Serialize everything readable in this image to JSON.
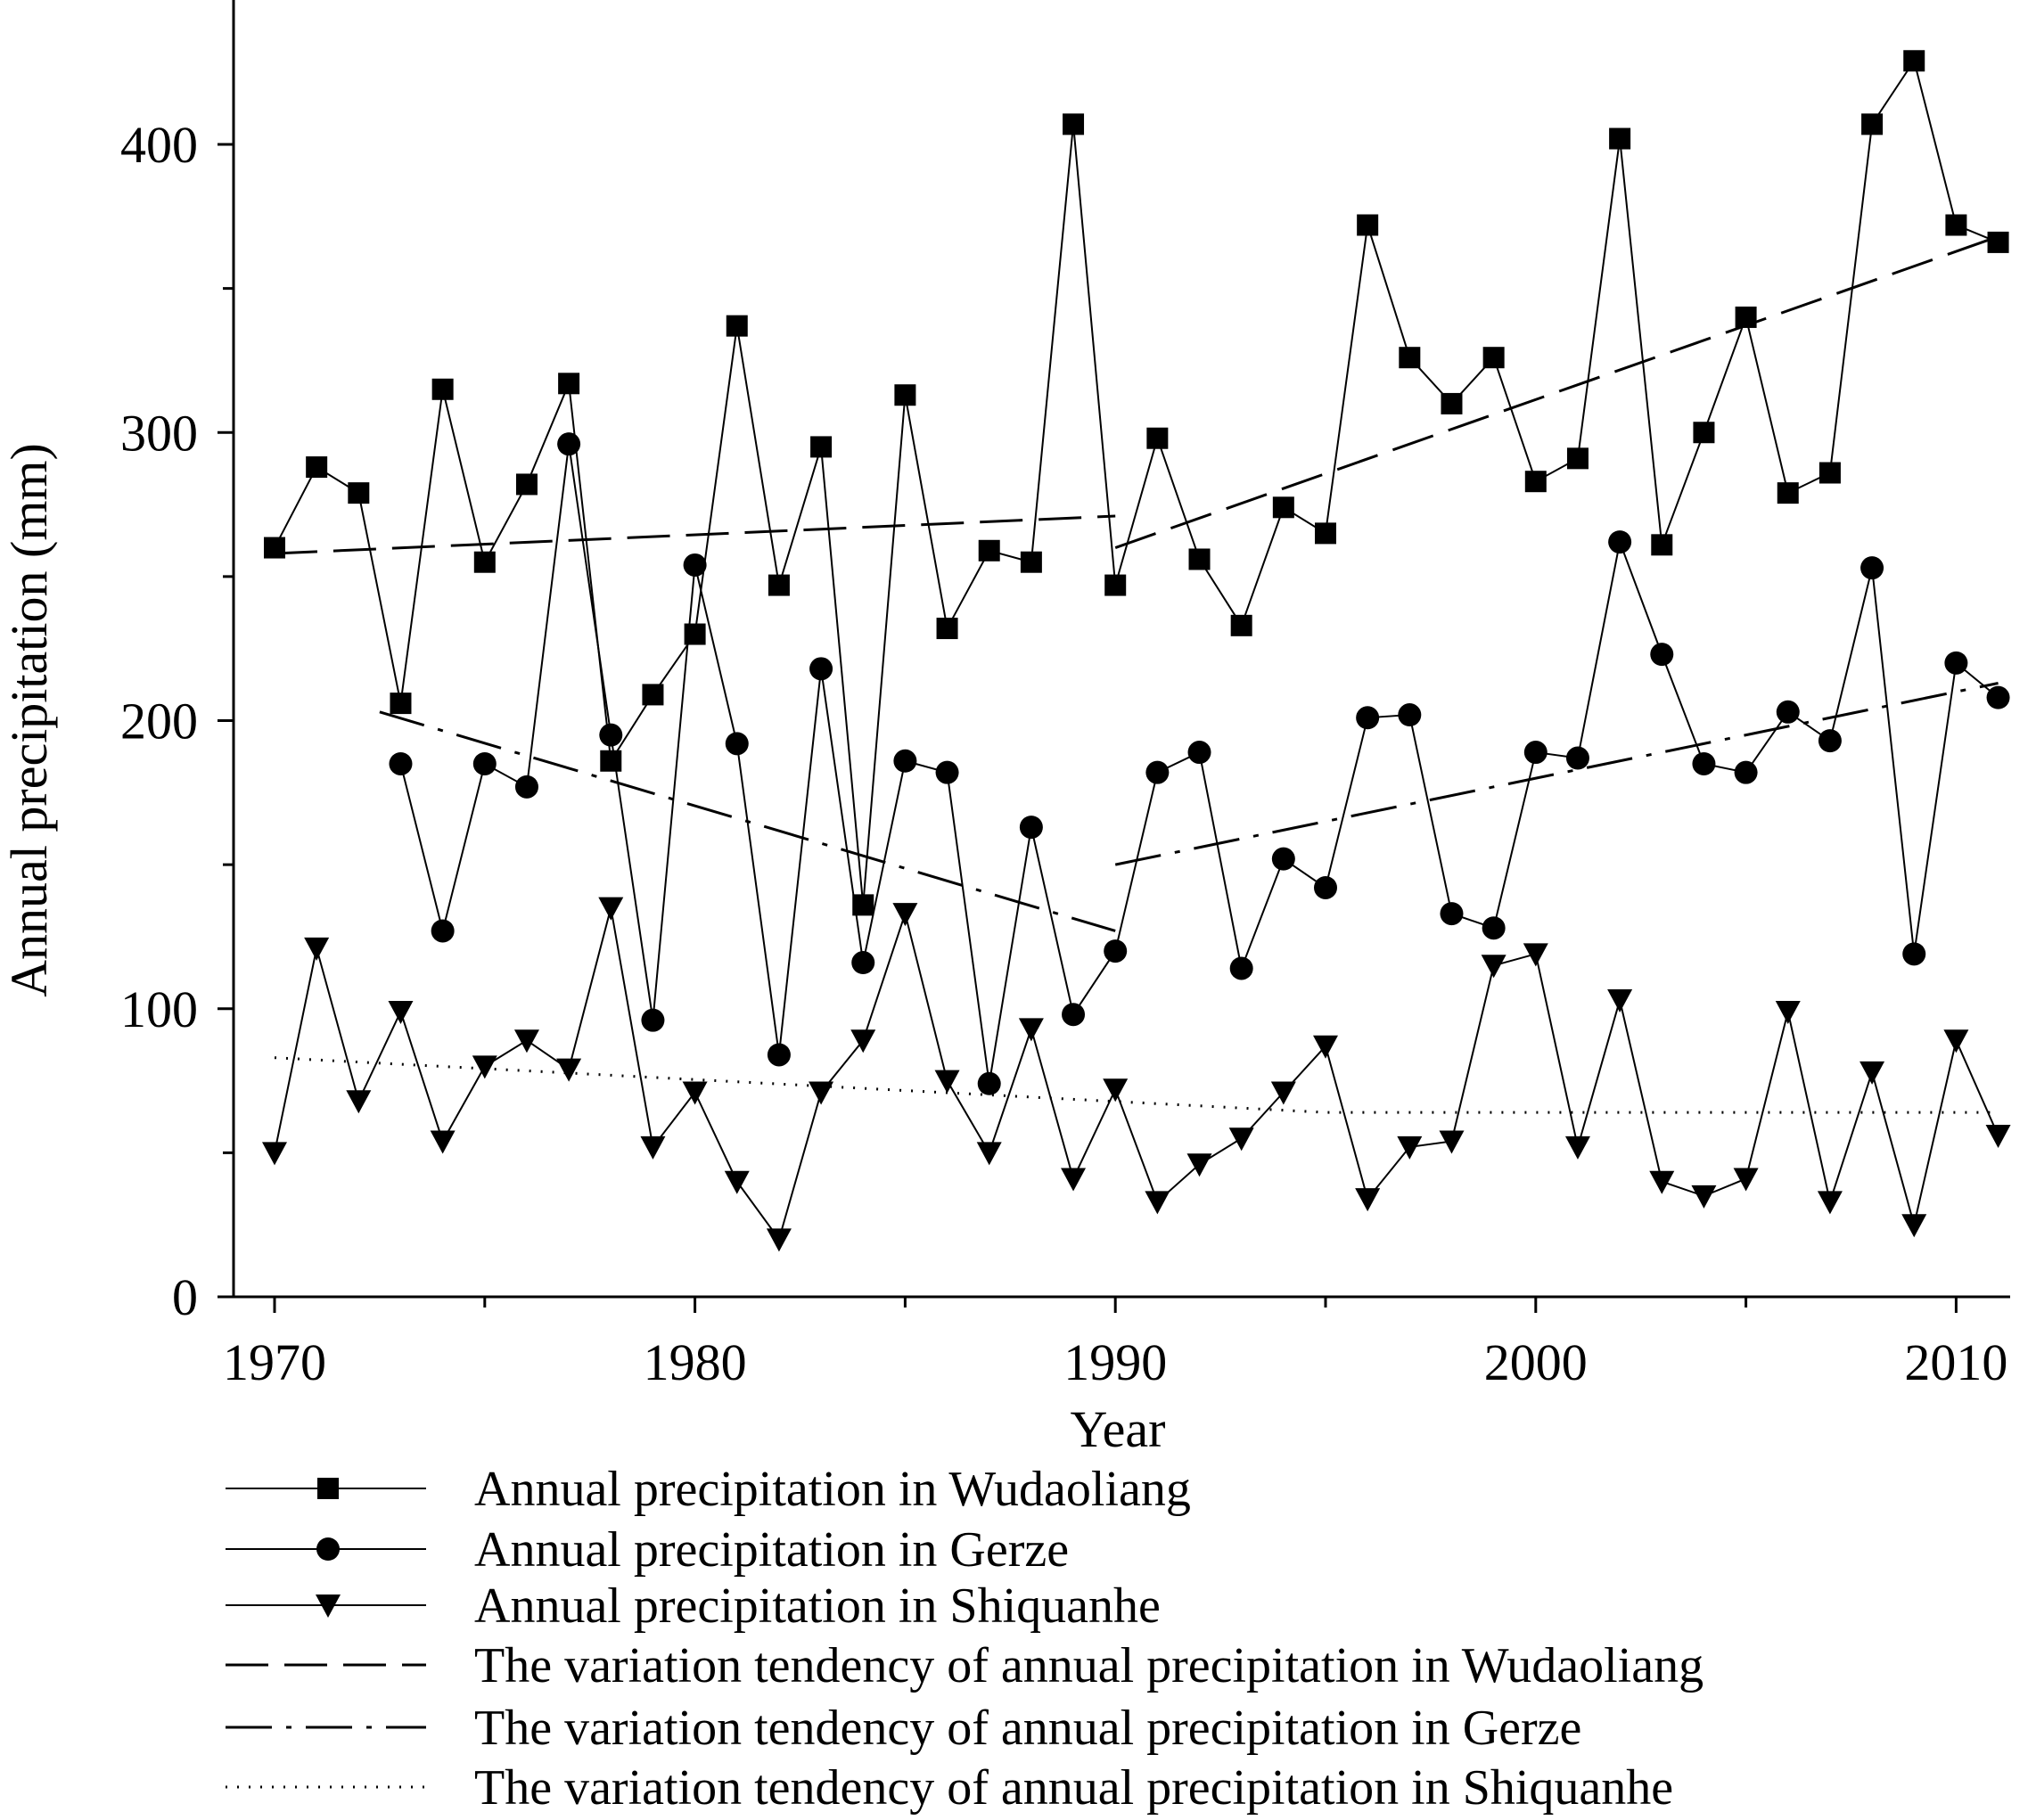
{
  "chart_data": {
    "type": "line",
    "xlabel": "Year",
    "ylabel": "Annual precipitation (mm)",
    "xlim": [
      1969,
      2012
    ],
    "ylim": [
      0,
      450
    ],
    "xticks": [
      1970,
      1980,
      1990,
      2000,
      2010
    ],
    "yticks": [
      0,
      100,
      200,
      300,
      400
    ],
    "grid": false,
    "legend_position": "bottom",
    "x": [
      1970,
      1971,
      1972,
      1973,
      1974,
      1975,
      1976,
      1977,
      1978,
      1979,
      1980,
      1981,
      1982,
      1983,
      1984,
      1985,
      1986,
      1987,
      1988,
      1989,
      1990,
      1991,
      1992,
      1993,
      1994,
      1995,
      1996,
      1997,
      1998,
      1999,
      2000,
      2001,
      2002,
      2003,
      2004,
      2005,
      2006,
      2007,
      2008,
      2009,
      2010,
      2011
    ],
    "series": [
      {
        "name": "Annual precipitation in Wudaoliang",
        "marker": "square",
        "x": [
          1970,
          1971,
          1972,
          1973,
          1974,
          1975,
          1976,
          1977,
          1978,
          1979,
          1980,
          1981,
          1982,
          1983,
          1984,
          1985,
          1986,
          1987,
          1988,
          1989,
          1990,
          1991,
          1992,
          1993,
          1994,
          1995,
          1996,
          1997,
          1998,
          1999,
          2000,
          2001,
          2002,
          2003,
          2004,
          2005,
          2006,
          2007,
          2008,
          2009,
          2010,
          2011
        ],
        "values": [
          260,
          288,
          279,
          206,
          315,
          255,
          282,
          317,
          186,
          209,
          230,
          337,
          247,
          295,
          136,
          313,
          232,
          259,
          255,
          407,
          247,
          298,
          256,
          233,
          274,
          265,
          372,
          326,
          310,
          326,
          283,
          291,
          402,
          261,
          300,
          340,
          279,
          286,
          407,
          429,
          372,
          366
        ]
      },
      {
        "name": "Annual precipitation in Gerze",
        "marker": "circle",
        "x": [
          1973,
          1974,
          1975,
          1976,
          1977,
          1978,
          1979,
          1980,
          1981,
          1982,
          1983,
          1984,
          1985,
          1986,
          1987,
          1988,
          1989,
          1990,
          1991,
          1992,
          1993,
          1994,
          1995,
          1996,
          1997,
          1998,
          1999,
          2000,
          2001,
          2002,
          2003,
          2004,
          2005,
          2006,
          2007,
          2008,
          2009,
          2010,
          2011
        ],
        "values": [
          185,
          127,
          185,
          177,
          296,
          195,
          96,
          254,
          192,
          84,
          218,
          116,
          186,
          182,
          74,
          163,
          98,
          120,
          182,
          189,
          114,
          152,
          142,
          201,
          202,
          133,
          128,
          189,
          187,
          262,
          223,
          185,
          182,
          203,
          193,
          253,
          119,
          220,
          208
        ]
      },
      {
        "name": "Annual precipitation in Shiquanhe",
        "marker": "triangle-down",
        "x": [
          1970,
          1971,
          1972,
          1973,
          1974,
          1975,
          1976,
          1977,
          1978,
          1979,
          1980,
          1981,
          1982,
          1983,
          1984,
          1985,
          1986,
          1987,
          1988,
          1989,
          1990,
          1991,
          1992,
          1993,
          1994,
          1995,
          1996,
          1997,
          1998,
          1999,
          2000,
          2001,
          2002,
          2003,
          2004,
          2005,
          2006,
          2007,
          2008,
          2009,
          2010,
          2011
        ],
        "values": [
          50,
          121,
          68,
          99,
          54,
          80,
          89,
          79,
          135,
          52,
          71,
          40,
          20,
          71,
          89,
          133,
          75,
          50,
          93,
          41,
          72,
          33,
          46,
          55,
          71,
          87,
          34,
          52,
          54,
          115,
          119,
          52,
          103,
          40,
          35,
          41,
          99,
          33,
          78,
          25,
          89,
          56
        ]
      }
    ],
    "trends": [
      {
        "name": "The variation tendency of annual precipitation in Wudaoliang",
        "style": "dash",
        "segments": [
          {
            "x": [
              1970,
              1990
            ],
            "y": [
              258,
              271
            ]
          },
          {
            "x": [
              1990,
              2011
            ],
            "y": [
              260,
              368
            ]
          }
        ]
      },
      {
        "name": "The variation tendency of annual precipitation in Gerze",
        "style": "dashdot",
        "segments": [
          {
            "x": [
              1972.5,
              1990
            ],
            "y": [
              203,
              127
            ]
          },
          {
            "x": [
              1990,
              2011
            ],
            "y": [
              150,
              213
            ]
          }
        ]
      },
      {
        "name": "The variation tendency of annual precipitation in Shiquanhe",
        "style": "dot",
        "segments": [
          {
            "x": [
              1970,
              1995,
              2011
            ],
            "y": [
              83,
              64,
              64
            ]
          }
        ]
      }
    ]
  }
}
